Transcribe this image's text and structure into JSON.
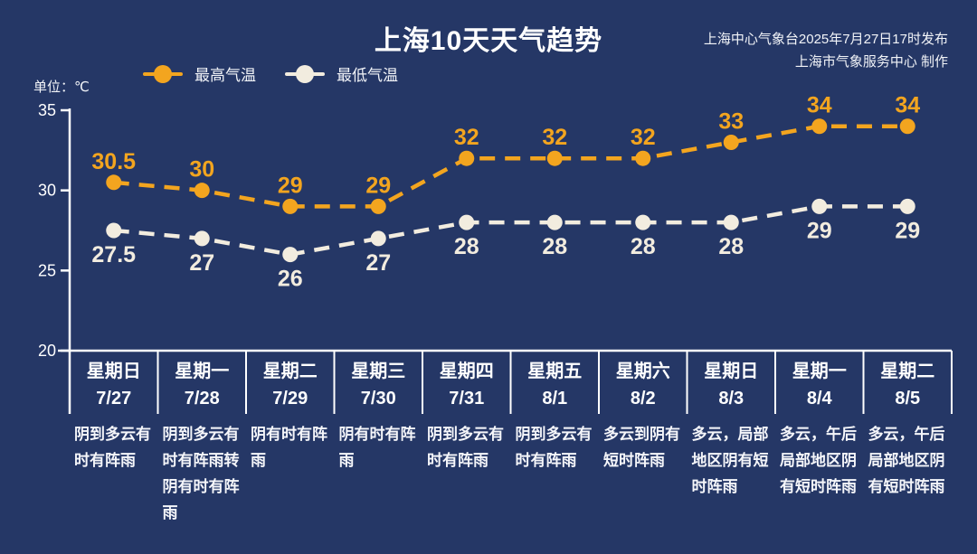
{
  "header": {
    "title": "上海10天天气趋势",
    "attribution_line1": "上海中心气象台2025年7月27日17时发布",
    "attribution_line2": "上海市气象服务中心 制作",
    "unit_label": "单位：℃"
  },
  "legend": [
    {
      "label": "最高气温",
      "color": "#f3a51f"
    },
    {
      "label": "最低气温",
      "color": "#f2ecdf"
    }
  ],
  "colors": {
    "background": "#253766",
    "axis": "#ffffff",
    "text": "#ffffff",
    "high": "#f3a51f",
    "low": "#f2ecdf"
  },
  "chart_data": {
    "type": "line",
    "title": "上海10天天气趋势",
    "unit": "℃",
    "ylim": [
      20,
      35
    ],
    "yticks": [
      35,
      30,
      25,
      20
    ],
    "grid": false,
    "legend_position": "top",
    "categories": [
      {
        "day": "星期日",
        "date": "7/27",
        "weather": "阴到多云有时有阵雨"
      },
      {
        "day": "星期一",
        "date": "7/28",
        "weather": "阴到多云有时有阵雨转阴有时有阵雨"
      },
      {
        "day": "星期二",
        "date": "7/29",
        "weather": "阴有时有阵雨"
      },
      {
        "day": "星期三",
        "date": "7/30",
        "weather": "阴有时有阵雨"
      },
      {
        "day": "星期四",
        "date": "7/31",
        "weather": "阴到多云有时有阵雨"
      },
      {
        "day": "星期五",
        "date": "8/1",
        "weather": "阴到多云有时有阵雨"
      },
      {
        "day": "星期六",
        "date": "8/2",
        "weather": "多云到阴有短时阵雨"
      },
      {
        "day": "星期日",
        "date": "8/3",
        "weather": "多云，局部地区阴有短时阵雨"
      },
      {
        "day": "星期一",
        "date": "8/4",
        "weather": "多云，午后局部地区阴有短时阵雨"
      },
      {
        "day": "星期二",
        "date": "8/5",
        "weather": "多云，午后局部地区阴有短时阵雨"
      }
    ],
    "series": [
      {
        "name": "最高气温",
        "color": "#f3a51f",
        "values": [
          30.5,
          30,
          29,
          29,
          32,
          32,
          32,
          33,
          34,
          34
        ]
      },
      {
        "name": "最低气温",
        "color": "#f2ecdf",
        "values": [
          27.5,
          27,
          26,
          27,
          28,
          28,
          28,
          28,
          29,
          29
        ]
      }
    ]
  }
}
